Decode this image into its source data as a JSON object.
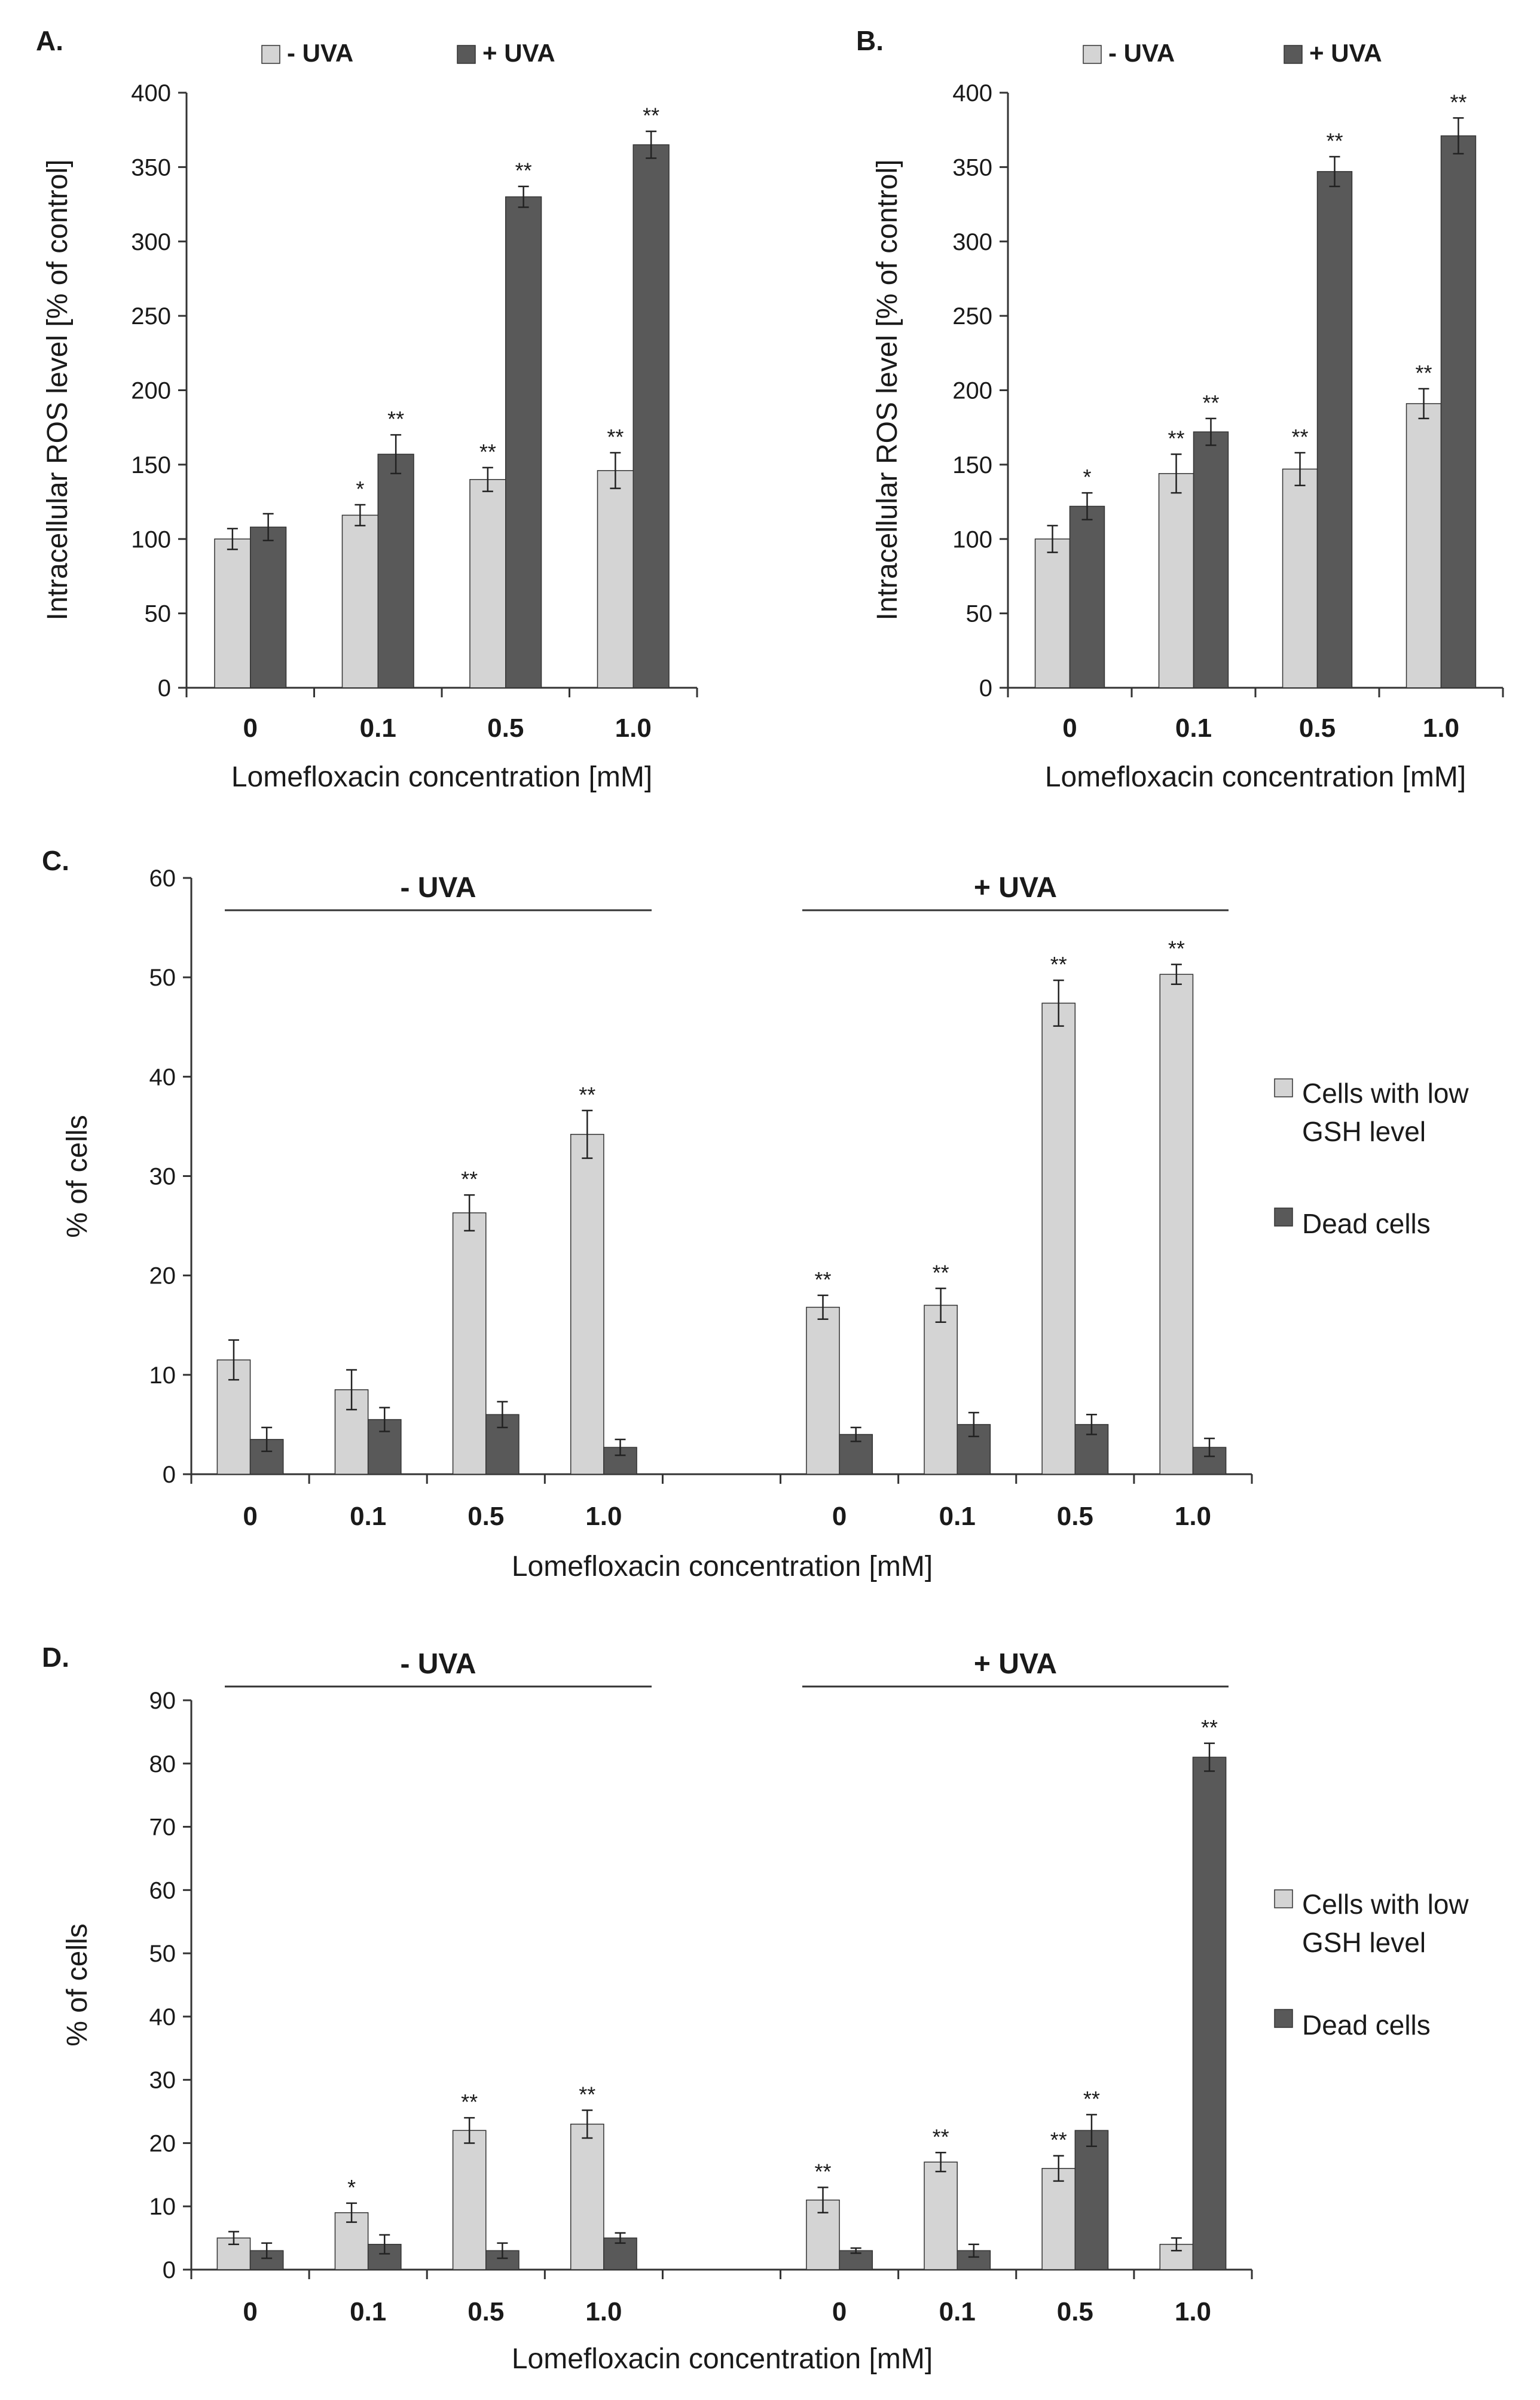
{
  "colors": {
    "light": "#d4d4d4",
    "dark": "#595959",
    "axis": "#333333",
    "text": "#1a1a1a"
  },
  "chart_data": [
    {
      "panel": "A.",
      "type": "bar",
      "categories": [
        "0",
        "0.1",
        "0.5",
        "1.0"
      ],
      "series": [
        {
          "name": "- UVA",
          "color": "light",
          "values": [
            100,
            116,
            140,
            146
          ],
          "errors": [
            7,
            7,
            8,
            12
          ],
          "sig": [
            "",
            "*",
            "**",
            "**"
          ]
        },
        {
          "name": "+ UVA",
          "color": "dark",
          "values": [
            108,
            157,
            330,
            365
          ],
          "errors": [
            9,
            13,
            7,
            9
          ],
          "sig": [
            "",
            "**",
            "**",
            "**"
          ]
        }
      ],
      "xlabel": "Lomefloxacin concentration [mM]",
      "ylabel": "Intracellular ROS level [% of control]",
      "ylim": [
        0,
        400
      ],
      "yticks": [
        0,
        50,
        100,
        150,
        200,
        250,
        300,
        350,
        400
      ],
      "legend": "top"
    },
    {
      "panel": "B.",
      "type": "bar",
      "categories": [
        "0",
        "0.1",
        "0.5",
        "1.0"
      ],
      "series": [
        {
          "name": "- UVA",
          "color": "light",
          "values": [
            100,
            144,
            147,
            191
          ],
          "errors": [
            9,
            13,
            11,
            10
          ],
          "sig": [
            "",
            "**",
            "**",
            "**"
          ]
        },
        {
          "name": "+ UVA",
          "color": "dark",
          "values": [
            122,
            172,
            347,
            371
          ],
          "errors": [
            9,
            9,
            10,
            12
          ],
          "sig": [
            "*",
            "**",
            "**",
            "**"
          ]
        }
      ],
      "xlabel": "Lomefloxacin concentration [mM]",
      "ylabel": "Intracellular ROS level [% of control]",
      "ylim": [
        0,
        400
      ],
      "yticks": [
        0,
        50,
        100,
        150,
        200,
        250,
        300,
        350,
        400
      ],
      "legend": "top"
    },
    {
      "panel": "C.",
      "type": "bar",
      "groups": [
        "- UVA",
        "+ UVA"
      ],
      "categories": [
        "0",
        "0.1",
        "0.5",
        "1.0",
        "0",
        "0.1",
        "0.5",
        "1.0"
      ],
      "series": [
        {
          "name": "Cells with low GSH level",
          "color": "light",
          "values": [
            11.5,
            8.5,
            26.3,
            34.2,
            16.8,
            17,
            47.4,
            50.3
          ],
          "errors": [
            2,
            2,
            1.8,
            2.4,
            1.2,
            1.7,
            2.3,
            1
          ],
          "sig": [
            "",
            "",
            "**",
            "**",
            "**",
            "**",
            "**",
            "**"
          ]
        },
        {
          "name": "Dead cells",
          "color": "dark",
          "values": [
            3.5,
            5.5,
            6,
            2.7,
            4,
            5,
            5,
            2.7
          ],
          "errors": [
            1.2,
            1.2,
            1.3,
            0.8,
            0.7,
            1.2,
            1,
            0.9
          ],
          "sig": [
            "",
            "",
            "",
            "",
            "",
            "",
            "",
            ""
          ]
        }
      ],
      "xlabel": "Lomefloxacin concentration [mM]",
      "ylabel": "% of cells",
      "ylim": [
        0,
        60
      ],
      "yticks": [
        0,
        10,
        20,
        30,
        40,
        50,
        60
      ],
      "legend": "right"
    },
    {
      "panel": "D.",
      "type": "bar",
      "groups": [
        "- UVA",
        "+ UVA"
      ],
      "categories": [
        "0",
        "0.1",
        "0.5",
        "1.0",
        "0",
        "0.1",
        "0.5",
        "1.0"
      ],
      "series": [
        {
          "name": "Cells with low GSH level",
          "color": "light",
          "values": [
            5,
            9,
            22,
            23,
            11,
            17,
            16,
            4
          ],
          "errors": [
            1,
            1.5,
            2,
            2.2,
            2,
            1.5,
            2,
            1
          ],
          "sig": [
            "",
            "*",
            "**",
            "**",
            "**",
            "**",
            "**",
            ""
          ]
        },
        {
          "name": "Dead cells",
          "color": "dark",
          "values": [
            3,
            4,
            3,
            5,
            3,
            3,
            22,
            81
          ],
          "errors": [
            1.2,
            1.5,
            1.2,
            0.8,
            0.4,
            1,
            2.5,
            2.2
          ],
          "sig": [
            "",
            "",
            "",
            "",
            "",
            "",
            "**",
            "**"
          ]
        }
      ],
      "xlabel": "Lomefloxacin concentration [mM]",
      "ylabel": "% of cells",
      "ylim": [
        0,
        90
      ],
      "yticks": [
        0,
        10,
        20,
        30,
        40,
        50,
        60,
        70,
        80,
        90
      ],
      "legend": "right"
    }
  ]
}
